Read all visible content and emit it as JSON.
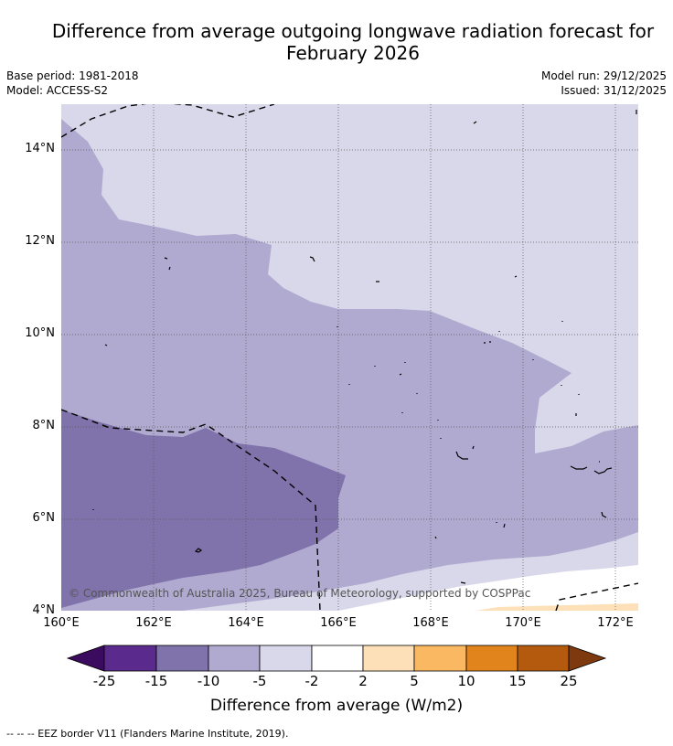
{
  "title": "Difference from average outgoing longwave radiation forecast for\nFebruary 2026",
  "meta": {
    "base_period": "Base period: 1981-2018",
    "model": "Model: ACCESS-S2",
    "model_run": "Model run: 29/12/2025",
    "issued": "Issued: 31/12/2025"
  },
  "axes": {
    "lat_labels": [
      "14°N",
      "12°N",
      "10°N",
      "8°N",
      "6°N",
      "4°N"
    ],
    "lon_labels": [
      "160°E",
      "162°E",
      "164°E",
      "166°E",
      "168°E",
      "170°E",
      "172°E"
    ]
  },
  "copyright": "© Commonwealth of Australia 2025, Bureau of Meteorology, supported by COSPPac",
  "colorbar": {
    "ticks": [
      "-25",
      "-15",
      "-10",
      "-5",
      "-2",
      "2",
      "5",
      "10",
      "15",
      "25"
    ],
    "colors": [
      "#5b2a8d",
      "#8072aa",
      "#b0aad0",
      "#d8d8ea",
      "#ffffff",
      "#fde0b8",
      "#fbb862",
      "#e2841c",
      "#b35a0e"
    ],
    "under_color": "#3a0b5e",
    "over_color": "#7e3a0e",
    "label": "Difference from average (W/m2)"
  },
  "footnote": "--  --  -- EEZ border V11 (Flanders Marine Institute, 2019)."
}
